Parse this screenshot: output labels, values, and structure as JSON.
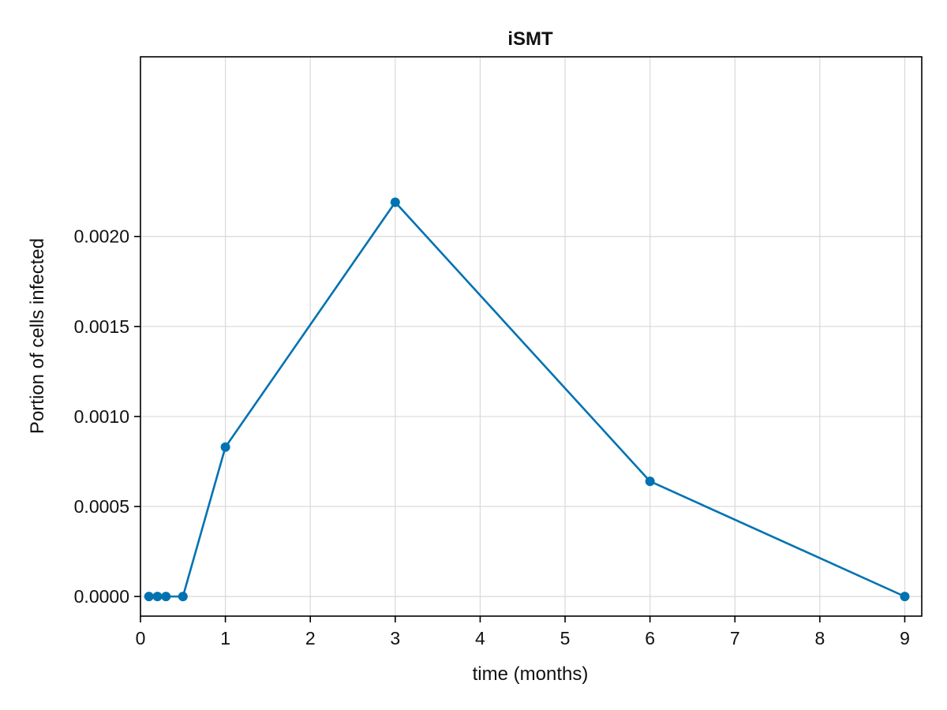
{
  "chart_data": {
    "type": "line",
    "title": "iSMT",
    "xlabel": "time (months)",
    "ylabel": "Portion of cells infected",
    "xlim": [
      0,
      9.2
    ],
    "ylim": [
      -0.000109,
      0.002998
    ],
    "xticks": [
      0,
      1,
      2,
      3,
      4,
      5,
      6,
      7,
      8,
      9
    ],
    "xtick_labels": [
      "0",
      "1",
      "2",
      "3",
      "4",
      "5",
      "6",
      "7",
      "8",
      "9"
    ],
    "yticks": [
      0.0,
      0.0005,
      0.001,
      0.0015,
      0.002
    ],
    "ytick_labels": [
      "0.0000",
      "0.0005",
      "0.0010",
      "0.0015",
      "0.0020"
    ],
    "grid": true,
    "series": [
      {
        "color": "#0072b2",
        "marker": "circle",
        "x": [
          0.1,
          0.2,
          0.3,
          0.5,
          1,
          3,
          6,
          9
        ],
        "y": [
          0.0,
          0.0,
          0.0,
          0.0,
          0.00083,
          0.00219,
          0.00064,
          0.0
        ]
      }
    ]
  }
}
